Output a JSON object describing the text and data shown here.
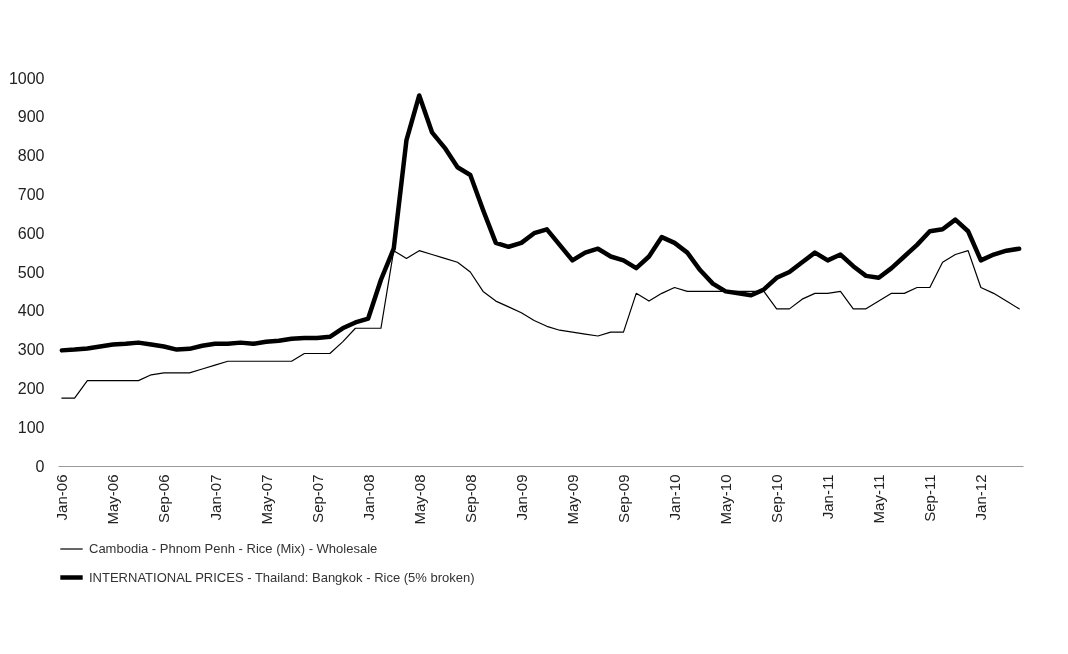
{
  "chart_data": {
    "type": "line",
    "categories": [
      "Jan-06",
      null,
      null,
      null,
      "May-06",
      null,
      null,
      null,
      "Sep-06",
      null,
      null,
      null,
      "Jan-07",
      null,
      null,
      null,
      "May-07",
      null,
      null,
      null,
      "Sep-07",
      null,
      null,
      null,
      "Jan-08",
      null,
      null,
      null,
      "May-08",
      null,
      null,
      null,
      "Sep-08",
      null,
      null,
      null,
      "Jan-09",
      null,
      null,
      null,
      "May-09",
      null,
      null,
      null,
      "Sep-09",
      null,
      null,
      null,
      "Jan-10",
      null,
      null,
      null,
      "May-10",
      null,
      null,
      null,
      "Sep-10",
      null,
      null,
      null,
      "Jan-11",
      null,
      null,
      null,
      "May-11",
      null,
      null,
      null,
      "Sep-11",
      null,
      null,
      null,
      "Jan-12",
      null,
      null,
      null
    ],
    "series": [
      {
        "name": "Cambodia - Phnom Penh - Rice (Mix) - Wholesale",
        "color": "#000000",
        "values": [
          175,
          175,
          220,
          220,
          220,
          220,
          220,
          235,
          240,
          240,
          240,
          250,
          260,
          270,
          270,
          270,
          270,
          270,
          270,
          290,
          290,
          290,
          320,
          355,
          355,
          355,
          555,
          535,
          555,
          545,
          535,
          525,
          500,
          450,
          425,
          410,
          395,
          375,
          360,
          350,
          345,
          340,
          335,
          345,
          345,
          445,
          425,
          445,
          460,
          450,
          450,
          450,
          450,
          450,
          450,
          450,
          405,
          405,
          430,
          445,
          445,
          450,
          405,
          405,
          425,
          445,
          445,
          460,
          460,
          525,
          545,
          555,
          460,
          445,
          425,
          405
        ]
      },
      {
        "name": "INTERNATIONAL PRICES - Thailand: Bangkok - Rice (5% broken)",
        "color": "#000000",
        "values": [
          298,
          300,
          303,
          308,
          313,
          315,
          318,
          313,
          308,
          300,
          302,
          310,
          315,
          315,
          318,
          315,
          320,
          323,
          328,
          330,
          330,
          333,
          355,
          370,
          380,
          480,
          560,
          840,
          955,
          860,
          820,
          770,
          750,
          660,
          575,
          565,
          575,
          600,
          610,
          570,
          530,
          550,
          560,
          540,
          530,
          510,
          540,
          590,
          575,
          550,
          505,
          470,
          450,
          445,
          440,
          455,
          485,
          500,
          525,
          550,
          530,
          545,
          515,
          490,
          485,
          510,
          540,
          570,
          605,
          610,
          635,
          605,
          530,
          545,
          555,
          560
        ]
      }
    ],
    "ylim": [
      0,
      1000
    ],
    "yticks": [
      0,
      100,
      200,
      300,
      400,
      500,
      600,
      700,
      800,
      900,
      1000
    ],
    "grid": false,
    "legend": "bottom"
  }
}
